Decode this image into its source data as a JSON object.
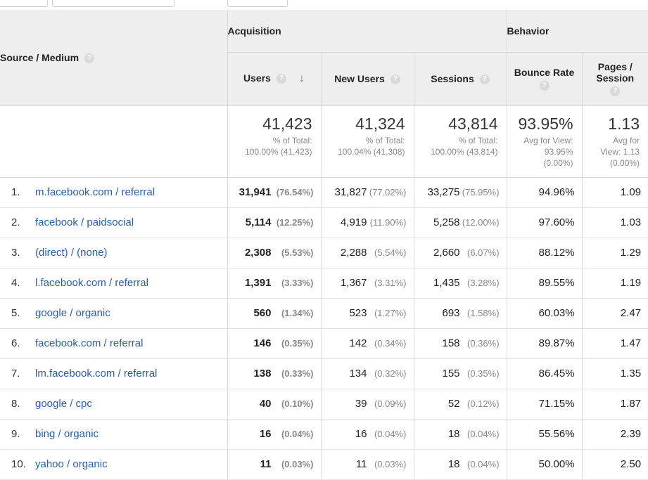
{
  "header": {
    "source_medium": "Source / Medium",
    "acquisition": "Acquisition",
    "behavior": "Behavior",
    "help_glyph": "?",
    "sort_glyph": "↓",
    "columns": {
      "users": "Users",
      "new_users": "New Users",
      "sessions": "Sessions",
      "bounce_rate": "Bounce Rate",
      "pages_session": "Pages / Session"
    }
  },
  "totals": {
    "users": {
      "value": "41,423",
      "line1": "% of Total:",
      "line2": "100.00% (41,423)"
    },
    "new_users": {
      "value": "41,324",
      "line1": "% of Total:",
      "line2": "100.04% (41,308)"
    },
    "sessions": {
      "value": "43,814",
      "line1": "% of Total:",
      "line2": "100.00% (43,814)"
    },
    "bounce_rate": {
      "value": "93.95%",
      "line1": "Avg for View:",
      "line2": "93.95%",
      "line3": "(0.00%)"
    },
    "pages_session": {
      "value": "1.13",
      "line1": "Avg for",
      "line2": "View: 1.13",
      "line3": "(0.00%)"
    }
  },
  "rows": [
    {
      "num": "1.",
      "source": "m.facebook.com / referral",
      "users": "31,941",
      "users_pct": "(76.54%)",
      "new_users": "31,827",
      "new_users_pct": "(77.02%)",
      "sessions": "33,275",
      "sessions_pct": "(75.95%)",
      "bounce_rate": "94.96%",
      "pages_session": "1.09"
    },
    {
      "num": "2.",
      "source": "facebook / paidsocial",
      "users": "5,114",
      "users_pct": "(12.25%)",
      "new_users": "4,919",
      "new_users_pct": "(11.90%)",
      "sessions": "5,258",
      "sessions_pct": "(12.00%)",
      "bounce_rate": "97.60%",
      "pages_session": "1.03"
    },
    {
      "num": "3.",
      "source": "(direct) / (none)",
      "users": "2,308",
      "users_pct": "(5.53%)",
      "new_users": "2,288",
      "new_users_pct": "(5.54%)",
      "sessions": "2,660",
      "sessions_pct": "(6.07%)",
      "bounce_rate": "88.12%",
      "pages_session": "1.29"
    },
    {
      "num": "4.",
      "source": "l.facebook.com / referral",
      "users": "1,391",
      "users_pct": "(3.33%)",
      "new_users": "1,367",
      "new_users_pct": "(3.31%)",
      "sessions": "1,435",
      "sessions_pct": "(3.28%)",
      "bounce_rate": "89.55%",
      "pages_session": "1.19"
    },
    {
      "num": "5.",
      "source": "google / organic",
      "users": "560",
      "users_pct": "(1.34%)",
      "new_users": "523",
      "new_users_pct": "(1.27%)",
      "sessions": "693",
      "sessions_pct": "(1.58%)",
      "bounce_rate": "60.03%",
      "pages_session": "2.47"
    },
    {
      "num": "6.",
      "source": "facebook.com / referral",
      "users": "146",
      "users_pct": "(0.35%)",
      "new_users": "142",
      "new_users_pct": "(0.34%)",
      "sessions": "158",
      "sessions_pct": "(0.36%)",
      "bounce_rate": "89.87%",
      "pages_session": "1.47"
    },
    {
      "num": "7.",
      "source": "lm.facebook.com / referral",
      "users": "138",
      "users_pct": "(0.33%)",
      "new_users": "134",
      "new_users_pct": "(0.32%)",
      "sessions": "155",
      "sessions_pct": "(0.35%)",
      "bounce_rate": "86.45%",
      "pages_session": "1.35"
    },
    {
      "num": "8.",
      "source": "google / cpc",
      "users": "40",
      "users_pct": "(0.10%)",
      "new_users": "39",
      "new_users_pct": "(0.09%)",
      "sessions": "52",
      "sessions_pct": "(0.12%)",
      "bounce_rate": "71.15%",
      "pages_session": "1.87"
    },
    {
      "num": "9.",
      "source": "bing / organic",
      "users": "16",
      "users_pct": "(0.04%)",
      "new_users": "16",
      "new_users_pct": "(0.04%)",
      "sessions": "18",
      "sessions_pct": "(0.04%)",
      "bounce_rate": "55.56%",
      "pages_session": "2.39"
    },
    {
      "num": "10.",
      "source": "yahoo / organic",
      "users": "11",
      "users_pct": "(0.03%)",
      "new_users": "11",
      "new_users_pct": "(0.03%)",
      "sessions": "18",
      "sessions_pct": "(0.04%)",
      "bounce_rate": "50.00%",
      "pages_session": "2.50"
    }
  ]
}
